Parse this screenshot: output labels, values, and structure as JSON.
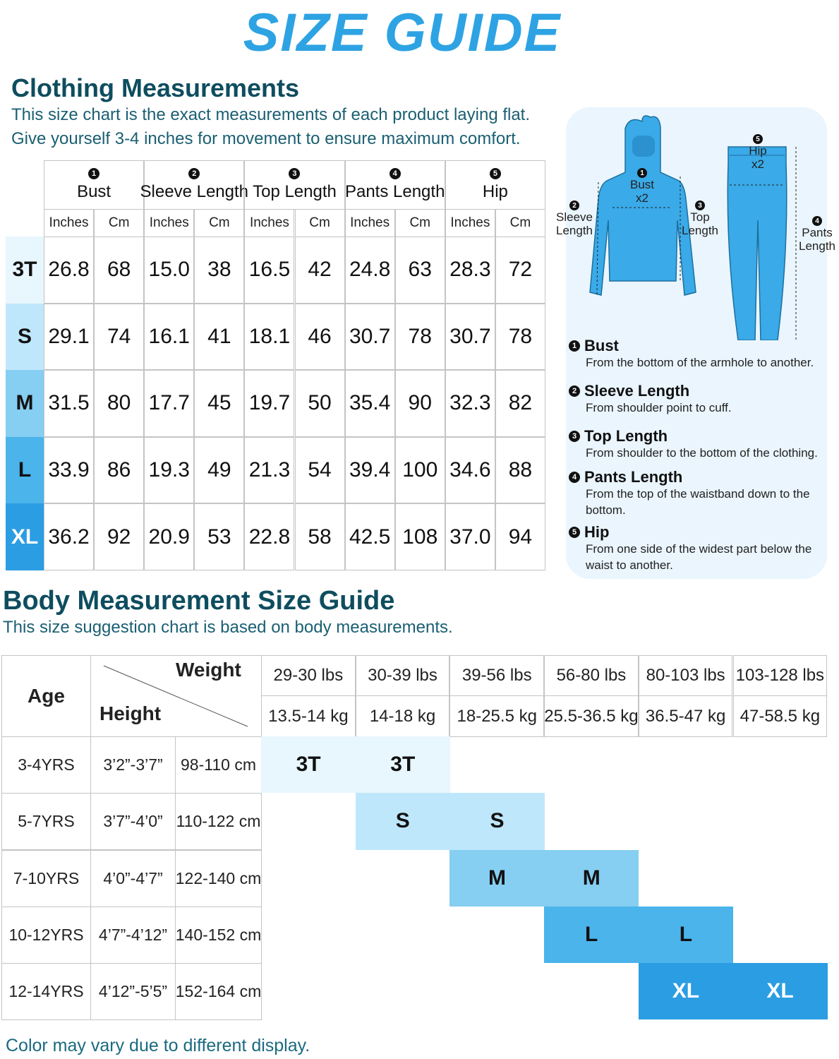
{
  "title": "SIZE GUIDE",
  "clothing": {
    "heading": "Clothing Measurements",
    "intro": [
      "This size chart is the exact measurements of each product laying flat.",
      "Give yourself 3-4 inches for movement to ensure maximum comfort."
    ],
    "measurements": [
      {
        "number": "1",
        "name": "Bust"
      },
      {
        "number": "2",
        "name": "Sleeve Length"
      },
      {
        "number": "3",
        "name": "Top Length"
      },
      {
        "number": "4",
        "name": "Pants Length"
      },
      {
        "number": "5",
        "name": "Hip"
      }
    ],
    "units": [
      "Inches",
      "Cm"
    ],
    "rows": [
      {
        "size": "3T",
        "values": [
          "26.8",
          "68",
          "15.0",
          "38",
          "16.5",
          "42",
          "24.8",
          "63",
          "28.3",
          "72"
        ]
      },
      {
        "size": "S",
        "values": [
          "29.1",
          "74",
          "16.1",
          "41",
          "18.1",
          "46",
          "30.7",
          "78",
          "30.7",
          "78"
        ]
      },
      {
        "size": "M",
        "values": [
          "31.5",
          "80",
          "17.7",
          "45",
          "19.7",
          "50",
          "35.4",
          "90",
          "32.3",
          "82"
        ]
      },
      {
        "size": "L",
        "values": [
          "33.9",
          "86",
          "19.3",
          "49",
          "21.3",
          "54",
          "39.4",
          "100",
          "34.6",
          "88"
        ]
      },
      {
        "size": "XL",
        "values": [
          "36.2",
          "92",
          "20.9",
          "53",
          "22.8",
          "58",
          "42.5",
          "108",
          "37.0",
          "94"
        ]
      }
    ]
  },
  "diagram": {
    "labels": [
      {
        "number": "1",
        "lines": [
          "Bust",
          "x2"
        ]
      },
      {
        "number": "2",
        "lines": [
          "Sleeve",
          "Length"
        ]
      },
      {
        "number": "3",
        "lines": [
          "Top",
          "Length"
        ]
      },
      {
        "number": "4",
        "lines": [
          "Pants",
          "Length"
        ]
      },
      {
        "number": "5",
        "lines": [
          "Hip",
          "x2"
        ]
      }
    ],
    "definitions": [
      {
        "number": "1",
        "term": "Bust",
        "description": "From the bottom of the armhole to another."
      },
      {
        "number": "2",
        "term": "Sleeve Length",
        "description": "From shoulder point to cuff."
      },
      {
        "number": "3",
        "term": "Top Length",
        "description": "From shoulder to the bottom of the clothing."
      },
      {
        "number": "4",
        "term": "Pants Length",
        "description": "From the top of the waistband down to the bottom."
      },
      {
        "number": "5",
        "term": "Hip",
        "description": "From one side of the widest part below the waist to another."
      }
    ]
  },
  "body": {
    "heading": "Body Measurement Size Guide",
    "intro": "This size suggestion chart is based on body measurements.",
    "age_header": "Age",
    "weight_header": "Weight",
    "height_header": "Height",
    "weights": [
      {
        "lbs": "29-30 lbs",
        "kg": "13.5-14 kg"
      },
      {
        "lbs": "30-39 lbs",
        "kg": "14-18 kg"
      },
      {
        "lbs": "39-56 lbs",
        "kg": "18-25.5 kg"
      },
      {
        "lbs": "56-80 lbs",
        "kg": "25.5-36.5 kg"
      },
      {
        "lbs": "80-103 lbs",
        "kg": "36.5-47 kg"
      },
      {
        "lbs": "103-128 lbs",
        "kg": "47-58.5 kg"
      }
    ],
    "rows": [
      {
        "age": "3-4YRS",
        "height_in": "3’2”-3’7”",
        "height_cm": "98-110 cm",
        "cells": [
          "3T",
          "3T",
          null,
          null,
          null,
          null
        ]
      },
      {
        "age": "5-7YRS",
        "height_in": "3’7”-4’0”",
        "height_cm": "110-122 cm",
        "cells": [
          null,
          "S",
          "S",
          null,
          null,
          null
        ]
      },
      {
        "age": "7-10YRS",
        "height_in": "4’0”-4’7”",
        "height_cm": "122-140 cm",
        "cells": [
          null,
          null,
          "M",
          "M",
          null,
          null
        ]
      },
      {
        "age": "10-12YRS",
        "height_in": "4’7”-4’12”",
        "height_cm": "140-152 cm",
        "cells": [
          null,
          null,
          null,
          "L",
          "L",
          null
        ]
      },
      {
        "age": "12-14YRS",
        "height_in": "4’12”-5’5”",
        "height_cm": "152-164 cm",
        "cells": [
          null,
          null,
          null,
          null,
          "XL",
          "XL"
        ]
      }
    ]
  },
  "footer": "Color may vary due to different display."
}
